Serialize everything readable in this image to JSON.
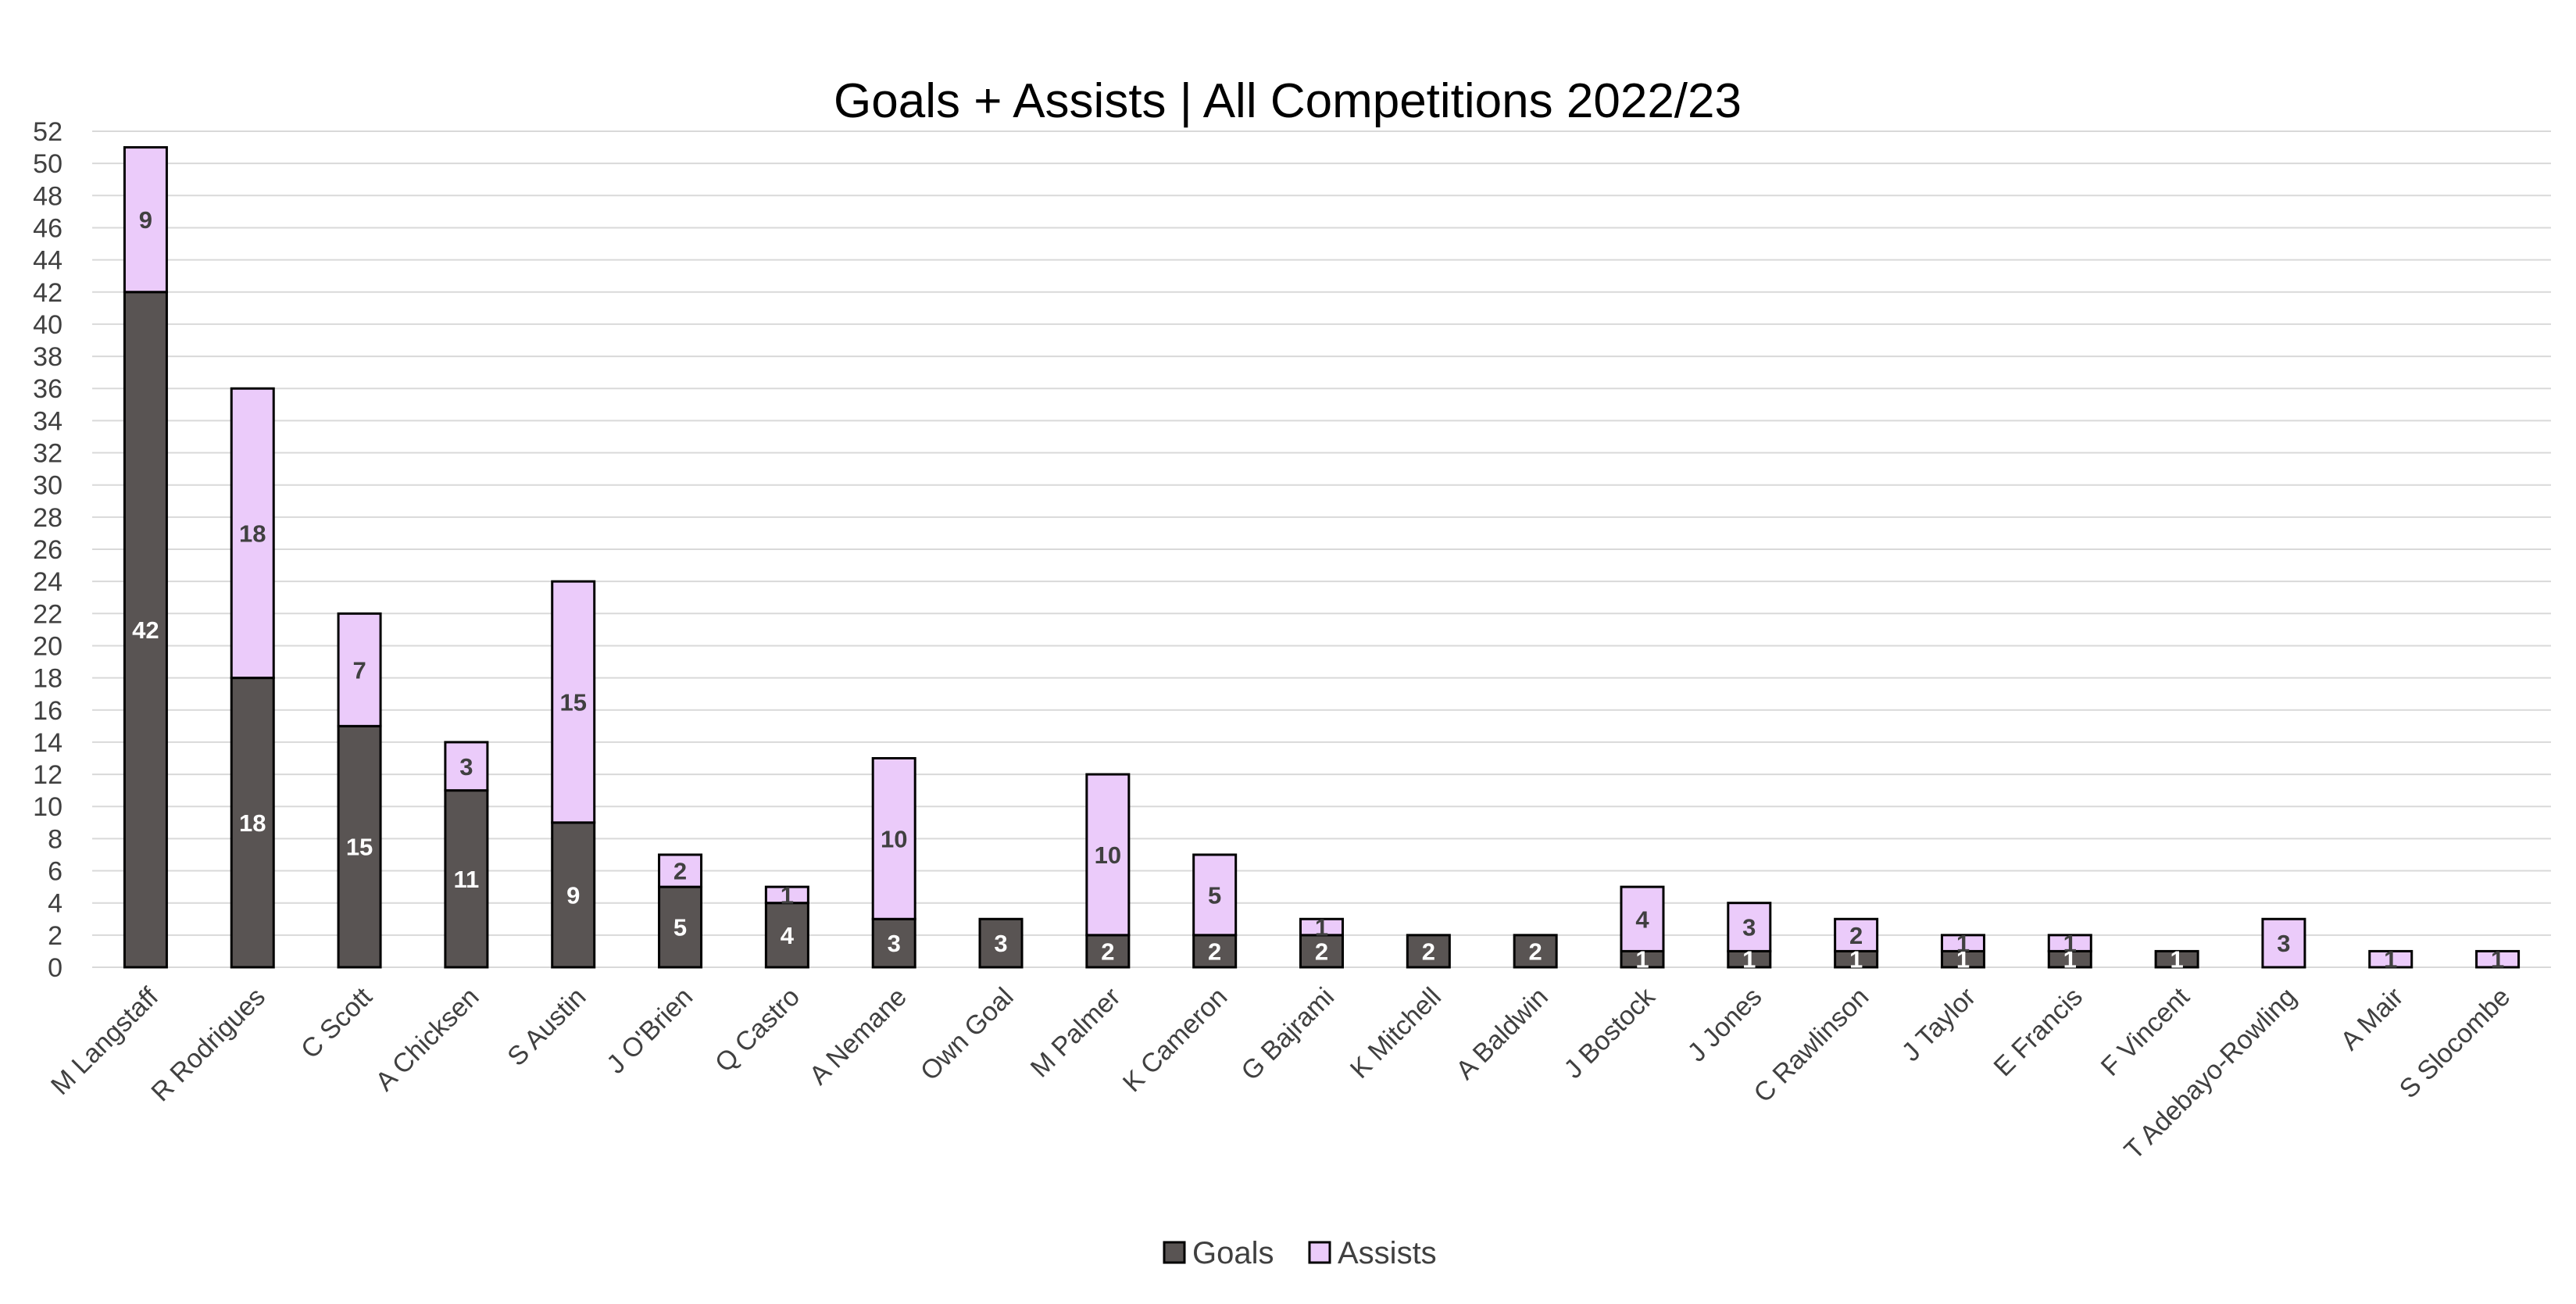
{
  "chart_data": {
    "type": "bar",
    "stacked": true,
    "title": "Goals + Assists | All Competitions 2022/23",
    "xlabel": "",
    "ylabel": "",
    "ylim": [
      0,
      52
    ],
    "y_tick_step": 2,
    "grid": true,
    "legend_position": "bottom",
    "categories": [
      "M Langstaff",
      "R Rodrigues",
      "C Scott",
      "A Chicksen",
      "S Austin",
      "J O'Brien",
      "Q Castro",
      "A Nemane",
      "Own Goal",
      "M Palmer",
      "K Cameron",
      "G Bajrami",
      "K Mitchell",
      "A Baldwin",
      "J Bostock",
      "J Jones",
      "C Rawlinson",
      "J Taylor",
      "E Francis",
      "F Vincent",
      "T Adebayo-Rowling",
      "A Mair",
      "S Slocombe"
    ],
    "series": [
      {
        "name": "Goals",
        "color": "#595453",
        "label_color": "#ffffff",
        "values": [
          42,
          18,
          15,
          11,
          9,
          5,
          4,
          3,
          3,
          2,
          2,
          2,
          2,
          2,
          1,
          1,
          1,
          1,
          1,
          1,
          0,
          0,
          0
        ]
      },
      {
        "name": "Assists",
        "color": "#ebcbfa",
        "label_color": "#404040",
        "values": [
          9,
          18,
          7,
          3,
          15,
          2,
          1,
          10,
          0,
          10,
          5,
          1,
          0,
          0,
          4,
          3,
          2,
          1,
          1,
          0,
          3,
          1,
          1
        ]
      }
    ]
  }
}
